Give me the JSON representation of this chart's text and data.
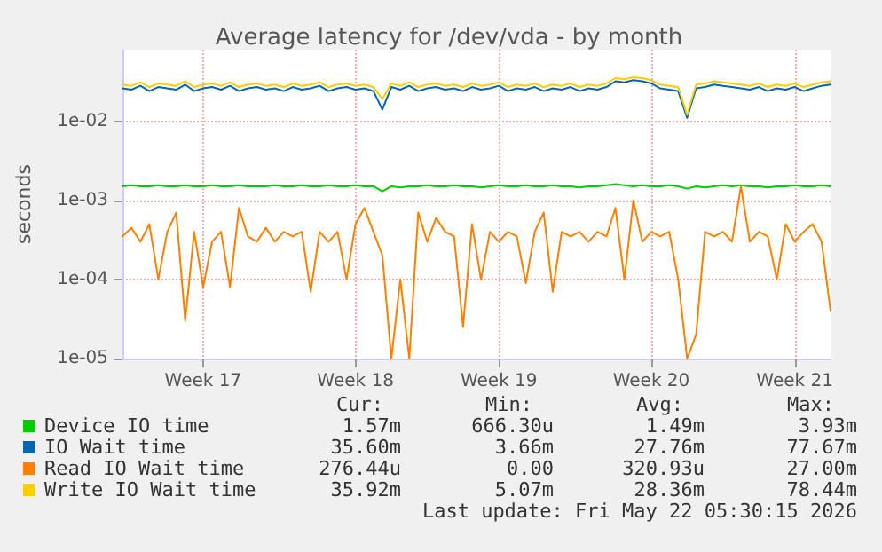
{
  "chart_data": {
    "type": "line",
    "title": "Average latency for /dev/vda - by month",
    "ylabel": "seconds",
    "log": "y",
    "grid": true,
    "legend": "bottom",
    "marker": "none",
    "line_style": "solid",
    "ylim": [
      1e-05,
      0.08
    ],
    "yticks": [
      {
        "value": 1e-05,
        "label": "1e-05"
      },
      {
        "value": 0.0001,
        "label": "1e-04"
      },
      {
        "value": 0.001,
        "label": "1e-03"
      },
      {
        "value": 0.01,
        "label": "1e-02"
      }
    ],
    "categories": [
      null,
      null,
      null,
      null,
      null,
      null,
      null,
      null,
      null,
      "Week 17",
      null,
      null,
      null,
      null,
      null,
      null,
      null,
      null,
      null,
      null,
      null,
      null,
      null,
      null,
      null,
      null,
      "Week 18",
      null,
      null,
      null,
      null,
      null,
      null,
      null,
      null,
      null,
      null,
      null,
      null,
      null,
      null,
      null,
      "Week 19",
      null,
      null,
      null,
      null,
      null,
      null,
      null,
      null,
      null,
      null,
      null,
      null,
      null,
      null,
      null,
      null,
      "Week 20",
      null,
      null,
      null,
      null,
      null,
      null,
      null,
      null,
      null,
      null,
      null,
      null,
      null,
      null,
      null,
      "Week 21",
      null,
      null,
      null,
      null
    ],
    "series": [
      {
        "name": "Device IO time",
        "color": "#00cc00",
        "values": [
          0.0015,
          0.00155,
          0.0015,
          0.0015,
          0.00155,
          0.0015,
          0.0015,
          0.00155,
          0.0015,
          0.0015,
          0.00155,
          0.0015,
          0.0015,
          0.00155,
          0.0015,
          0.0015,
          0.0015,
          0.00155,
          0.0015,
          0.0015,
          0.00155,
          0.0015,
          0.0015,
          0.00155,
          0.0015,
          0.0015,
          0.00155,
          0.0015,
          0.0015,
          0.0013,
          0.0015,
          0.00145,
          0.0015,
          0.0015,
          0.00155,
          0.0015,
          0.0015,
          0.00155,
          0.0015,
          0.0015,
          0.00145,
          0.0015,
          0.00155,
          0.0015,
          0.0015,
          0.00155,
          0.0015,
          0.0015,
          0.00155,
          0.0015,
          0.0015,
          0.00145,
          0.0015,
          0.0015,
          0.00155,
          0.0016,
          0.00155,
          0.0015,
          0.00155,
          0.0015,
          0.0015,
          0.00155,
          0.0015,
          0.0014,
          0.0015,
          0.00145,
          0.0015,
          0.00155,
          0.0015,
          0.00155,
          0.0015,
          0.0015,
          0.00145,
          0.0015,
          0.0015,
          0.00155,
          0.0015,
          0.0015,
          0.00155,
          0.0015
        ]
      },
      {
        "name": "IO Wait time",
        "color": "#0066b3",
        "values": [
          0.026,
          0.025,
          0.028,
          0.024,
          0.027,
          0.026,
          0.025,
          0.029,
          0.024,
          0.026,
          0.027,
          0.025,
          0.028,
          0.024,
          0.026,
          0.027,
          0.025,
          0.026,
          0.024,
          0.027,
          0.025,
          0.026,
          0.028,
          0.024,
          0.026,
          0.027,
          0.025,
          0.026,
          0.024,
          0.014,
          0.027,
          0.025,
          0.028,
          0.024,
          0.026,
          0.027,
          0.025,
          0.026,
          0.024,
          0.027,
          0.025,
          0.026,
          0.028,
          0.024,
          0.026,
          0.025,
          0.027,
          0.024,
          0.026,
          0.025,
          0.027,
          0.024,
          0.026,
          0.025,
          0.027,
          0.032,
          0.031,
          0.033,
          0.032,
          0.03,
          0.026,
          0.025,
          0.024,
          0.011,
          0.026,
          0.027,
          0.029,
          0.028,
          0.027,
          0.026,
          0.025,
          0.027,
          0.024,
          0.026,
          0.025,
          0.027,
          0.024,
          0.026,
          0.028,
          0.029
        ]
      },
      {
        "name": "Read IO Wait time",
        "color": "#ff8000",
        "values": [
          0.00035,
          0.00045,
          0.0003,
          0.0005,
          0.0001,
          0.0004,
          0.0007,
          3e-05,
          0.0004,
          8e-05,
          0.0003,
          0.0004,
          8e-05,
          0.0008,
          0.00035,
          0.0003,
          0.00045,
          0.0003,
          0.0004,
          0.00035,
          0.0004,
          7e-05,
          0.0004,
          0.0003,
          0.0004,
          0.0001,
          0.0005,
          0.0008,
          0.0004,
          0.0002,
          1e-05,
          0.0001,
          1e-05,
          0.0007,
          0.0003,
          0.0006,
          0.0004,
          0.00035,
          2.5e-05,
          0.0005,
          0.0001,
          0.0004,
          0.0003,
          0.0004,
          0.00035,
          9e-05,
          0.0004,
          0.0007,
          7e-05,
          0.0004,
          0.00035,
          0.0004,
          0.0003,
          0.0004,
          0.00035,
          0.0008,
          0.0001,
          0.001,
          0.0003,
          0.0004,
          0.00035,
          0.0004,
          0.0001,
          1e-05,
          2e-05,
          0.0004,
          0.00035,
          0.0004,
          0.0003,
          0.0015,
          0.0003,
          0.0004,
          0.00035,
          0.0001,
          0.0005,
          0.0003,
          0.0004,
          0.0005,
          0.0003,
          4e-05
        ]
      },
      {
        "name": "Write IO Wait time",
        "color": "#ffcc00",
        "values": [
          0.029,
          0.028,
          0.031,
          0.027,
          0.03,
          0.029,
          0.028,
          0.032,
          0.027,
          0.029,
          0.03,
          0.028,
          0.031,
          0.027,
          0.029,
          0.03,
          0.028,
          0.029,
          0.027,
          0.03,
          0.028,
          0.029,
          0.031,
          0.027,
          0.029,
          0.03,
          0.028,
          0.029,
          0.027,
          0.019,
          0.03,
          0.028,
          0.031,
          0.027,
          0.029,
          0.03,
          0.028,
          0.029,
          0.027,
          0.03,
          0.028,
          0.029,
          0.031,
          0.027,
          0.029,
          0.028,
          0.03,
          0.027,
          0.029,
          0.028,
          0.03,
          0.027,
          0.029,
          0.028,
          0.03,
          0.035,
          0.034,
          0.036,
          0.035,
          0.033,
          0.029,
          0.028,
          0.027,
          0.012,
          0.029,
          0.03,
          0.032,
          0.031,
          0.03,
          0.029,
          0.028,
          0.03,
          0.027,
          0.029,
          0.028,
          0.03,
          0.027,
          0.029,
          0.031,
          0.032
        ]
      }
    ],
    "annotations": [
      "Cur:",
      "Min:",
      "Avg:",
      "Max:",
      "1.57m",
      "666.30u",
      "1.49m",
      "3.93m",
      "35.60m",
      "3.66m",
      "27.76m",
      "77.67m",
      "276.44u",
      "0.00",
      "320.93u",
      "27.00m",
      "35.92m",
      "5.07m",
      "28.36m",
      "78.44m",
      "Last update: Fri May 22 05:30:15 2026"
    ]
  }
}
